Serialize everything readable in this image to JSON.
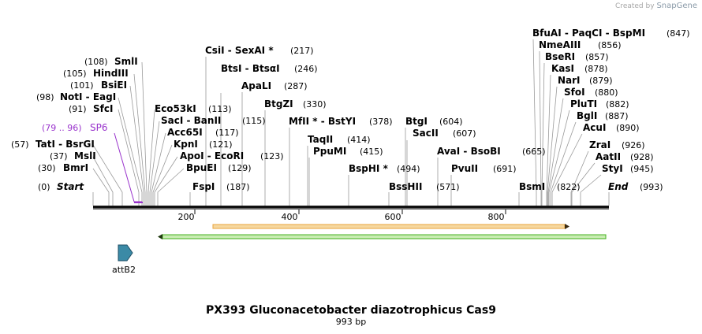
{
  "watermark": {
    "prefix": "Created by",
    "brand": "SnapGene"
  },
  "title": "PX393 Gluconacetobacter diazotrophicus Cas9",
  "length_label": "993 bp",
  "map": {
    "start_label": "Start",
    "start_pos": "(0)",
    "end_label": "End",
    "end_pos": "(993)"
  },
  "ruler_ticks": [
    "200",
    "400",
    "600",
    "800"
  ],
  "sites": [
    {
      "name": "SmlI",
      "pos": "(108)"
    },
    {
      "name": "HindIII",
      "pos": "(105)"
    },
    {
      "name": "BsiEI",
      "pos": "(101)"
    },
    {
      "name": "NotI - EagI",
      "pos": "(98)"
    },
    {
      "name": "SfcI",
      "pos": "(91)"
    },
    {
      "name": "TatI - BsrGI",
      "pos": "(57)"
    },
    {
      "name": "MslI",
      "pos": "(37)"
    },
    {
      "name": "BmrI",
      "pos": "(30)"
    },
    {
      "name": "Eco53kI",
      "pos": "(113)"
    },
    {
      "name": "SacI - BanII",
      "pos": "(115)"
    },
    {
      "name": "Acc65I",
      "pos": "(117)"
    },
    {
      "name": "KpnI",
      "pos": "(121)"
    },
    {
      "name": "ApoI - EcoRI",
      "pos": "(123)"
    },
    {
      "name": "BpuEI",
      "pos": "(129)"
    },
    {
      "name": "FspI",
      "pos": "(187)"
    },
    {
      "name": "CsiI - SexAI *",
      "pos": "(217)"
    },
    {
      "name": "BtsI - BtsαI",
      "pos": "(246)"
    },
    {
      "name": "ApaLI",
      "pos": "(287)"
    },
    {
      "name": "BtgZI",
      "pos": "(330)"
    },
    {
      "name": "MfII * - BstYI",
      "pos": "(378)"
    },
    {
      "name": "TaqII",
      "pos": "(414)"
    },
    {
      "name": "PpuMI",
      "pos": "(415)"
    },
    {
      "name": "BspHI *",
      "pos": "(494)"
    },
    {
      "name": "BssHII",
      "pos": "(571)"
    },
    {
      "name": "BtgI",
      "pos": "(604)"
    },
    {
      "name": "SacII",
      "pos": "(607)"
    },
    {
      "name": "AvaI - BsoBI",
      "pos": "(665)"
    },
    {
      "name": "PvuII",
      "pos": "(691)"
    },
    {
      "name": "BsmI",
      "pos": "(822)"
    },
    {
      "name": "BfuAI - PaqCI - BspMI",
      "pos": "(847)"
    },
    {
      "name": "NmeAIII",
      "pos": "(856)"
    },
    {
      "name": "BseRI",
      "pos": "(857)"
    },
    {
      "name": "KasI",
      "pos": "(878)"
    },
    {
      "name": "NarI",
      "pos": "(879)"
    },
    {
      "name": "SfoI",
      "pos": "(880)"
    },
    {
      "name": "PluTI",
      "pos": "(882)"
    },
    {
      "name": "BglI",
      "pos": "(887)"
    },
    {
      "name": "AcuI",
      "pos": "(890)"
    },
    {
      "name": "ZraI",
      "pos": "(926)"
    },
    {
      "name": "AatII",
      "pos": "(928)"
    },
    {
      "name": "StyI",
      "pos": "(945)"
    }
  ],
  "primer": {
    "range": "(79 .. 96)",
    "name": "SP6"
  },
  "feature": {
    "name": "attB2"
  },
  "colors": {
    "primer": "#9933cc",
    "orange_arrow": "#e8a33c",
    "orange_fill": "#f6d8a0",
    "green_arrow": "#44b21f",
    "green_fill": "#c8ecb2",
    "feature_fill": "#3b8aa6",
    "backbone": "#111111"
  }
}
